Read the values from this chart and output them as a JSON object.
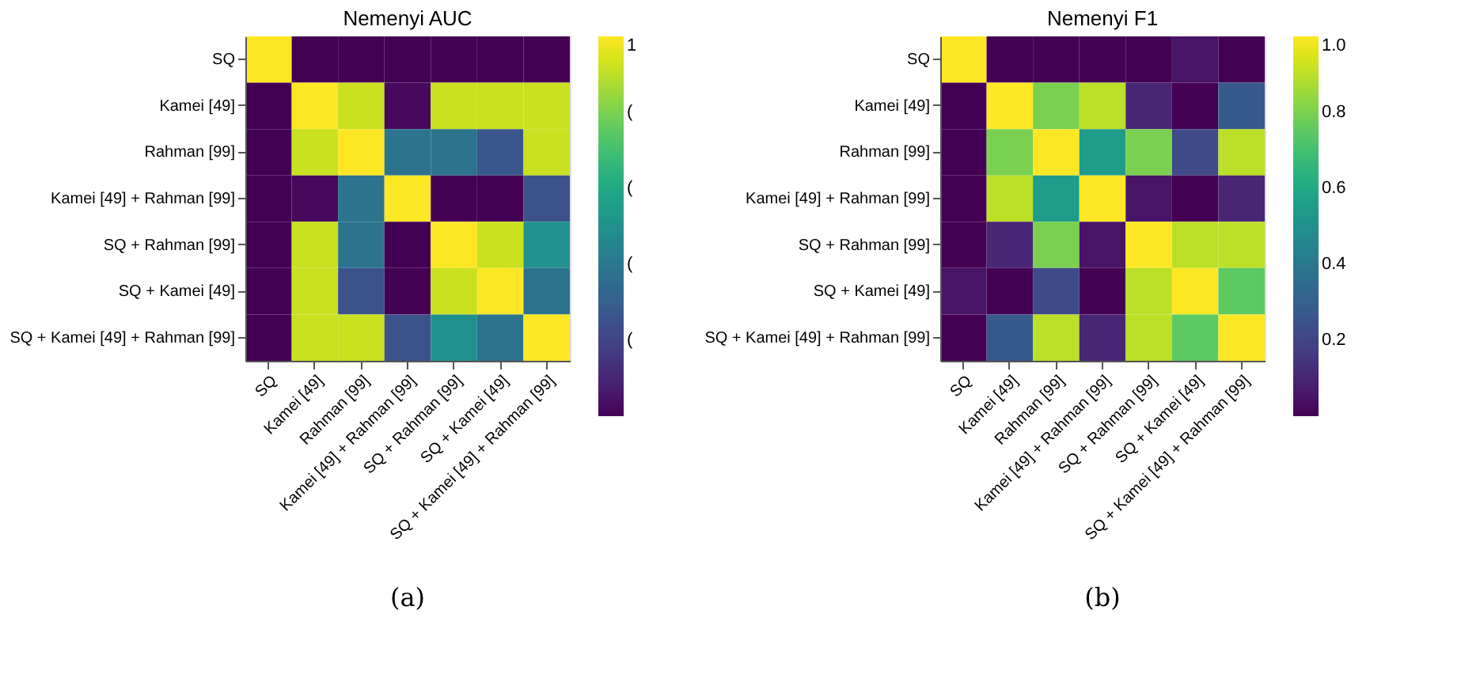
{
  "chart_data": [
    {
      "type": "heatmap",
      "title": "Nemenyi AUC",
      "annotations": [
        "(a)"
      ],
      "categories": [
        "SQ",
        "Kamei [49]",
        "Rahman [99]",
        "Kamei [49] + Rahman [99]",
        "SQ + Rahman [99]",
        "SQ + Kamei [49]",
        "SQ + Kamei [49] + Rahman [99]"
      ],
      "y_categories": [
        "SQ",
        "Kamei [49]",
        "Rahman [99]",
        "Kamei [49] + Rahman [99]",
        "SQ + Rahman [99]",
        "SQ + Kamei [49]",
        "SQ + Kamei [49] + Rahman [99]"
      ],
      "cells": [
        [
          1,
          0,
          0,
          0,
          0,
          0,
          0
        ],
        [
          0,
          1,
          0.92,
          0.02,
          0.92,
          0.92,
          0.92
        ],
        [
          0,
          0.92,
          1,
          0.38,
          0.38,
          0.27,
          0.92
        ],
        [
          0,
          0.02,
          0.38,
          1,
          0,
          0,
          0.25
        ],
        [
          0,
          0.92,
          0.38,
          0,
          1,
          0.92,
          0.5
        ],
        [
          0,
          0.92,
          0.25,
          0,
          0.92,
          1,
          0.38
        ],
        [
          0,
          0.92,
          0.92,
          0.25,
          0.5,
          0.38,
          1
        ]
      ],
      "clim": [
        0,
        1
      ],
      "cticks": [
        {
          "value": 1,
          "label": "1"
        },
        {
          "value": 0.8,
          "label": "("
        },
        {
          "value": 0.6,
          "label": "("
        },
        {
          "value": 0.4,
          "label": "("
        },
        {
          "value": 0.2,
          "label": "("
        }
      ],
      "grid": false
    },
    {
      "type": "heatmap",
      "title": "Nemenyi F1",
      "annotations": [
        "(b)"
      ],
      "categories": [
        "SQ",
        "Kamei [49]",
        "Rahman [99]",
        "Kamei [49] + Rahman [99]",
        "SQ + Rahman [99]",
        "SQ + Kamei [49]",
        "SQ + Kamei [49] + Rahman [99]"
      ],
      "y_categories": [
        "SQ",
        "Kamei [49]",
        "Rahman [99]",
        "Kamei [49] + Rahman [99]",
        "SQ + Rahman [99]",
        "SQ + Kamei [49]",
        "SQ + Kamei [49] + Rahman [99]"
      ],
      "cells": [
        [
          1,
          0,
          0,
          0,
          0,
          0.05,
          0
        ],
        [
          0,
          1,
          0.8,
          0.9,
          0.1,
          0,
          0.28
        ],
        [
          0,
          0.8,
          1,
          0.55,
          0.8,
          0.22,
          0.9
        ],
        [
          0,
          0.9,
          0.55,
          1,
          0.05,
          0,
          0.1
        ],
        [
          0,
          0.1,
          0.8,
          0.05,
          1,
          0.9,
          0.9
        ],
        [
          0.05,
          0,
          0.22,
          0,
          0.9,
          1,
          0.75
        ],
        [
          0,
          0.28,
          0.9,
          0.1,
          0.9,
          0.75,
          1
        ]
      ],
      "clim": [
        0,
        1
      ],
      "cticks": [
        {
          "value": 1,
          "label": "1.0"
        },
        {
          "value": 0.8,
          "label": "0.8"
        },
        {
          "value": 0.6,
          "label": "0.6"
        },
        {
          "value": 0.4,
          "label": "0.4"
        },
        {
          "value": 0.2,
          "label": "0.2"
        }
      ],
      "grid": false
    }
  ]
}
